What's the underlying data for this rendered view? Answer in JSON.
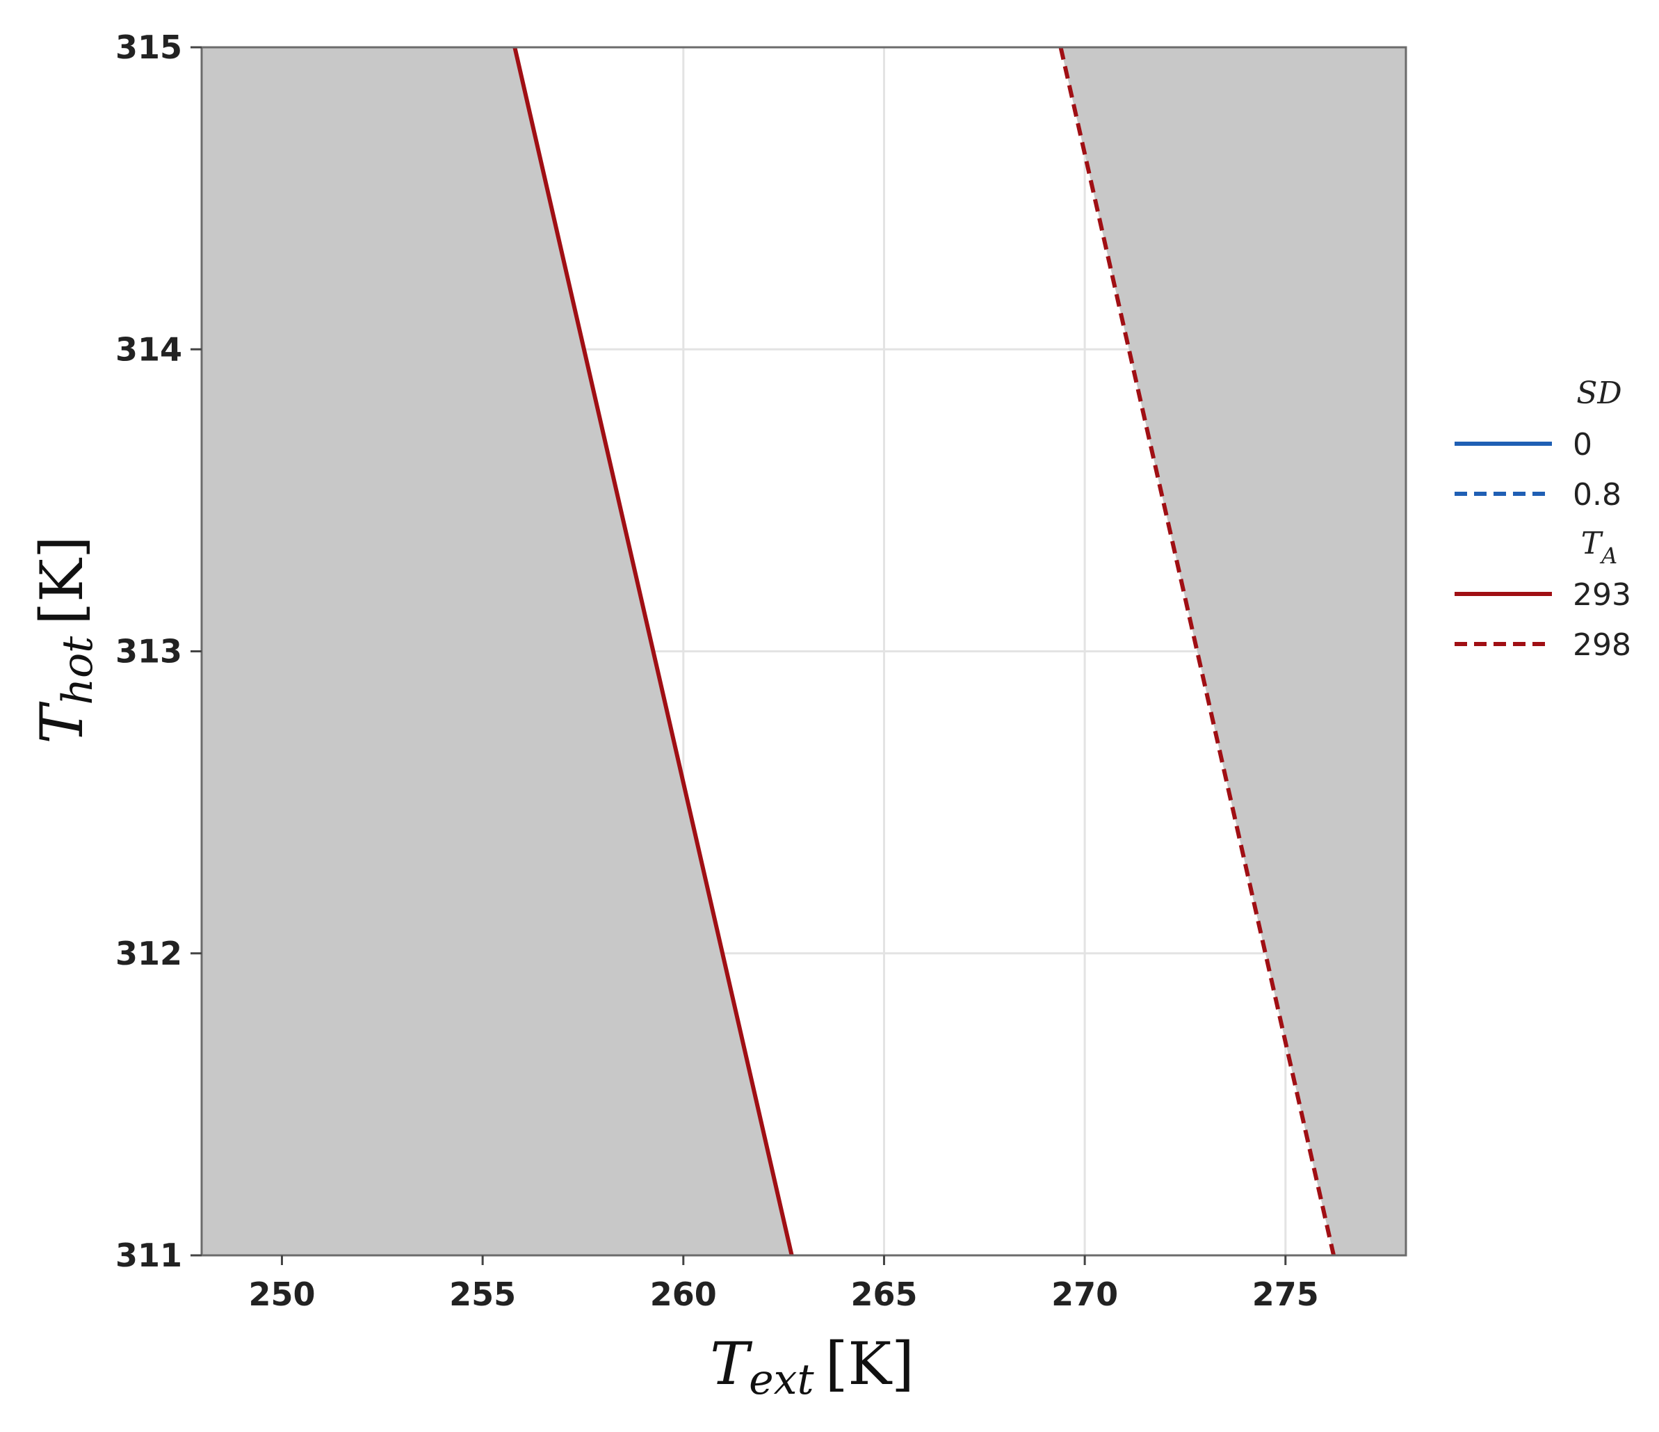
{
  "chart_data": {
    "type": "line",
    "xlabel": {
      "base": "T",
      "sub": "ext",
      "unit": "[K]"
    },
    "ylabel": {
      "base": "T",
      "sub": "hot",
      "unit": "[K]"
    },
    "xlim": [
      248,
      278
    ],
    "ylim": [
      311,
      315
    ],
    "x_ticks": [
      250,
      255,
      260,
      265,
      270,
      275
    ],
    "y_ticks": [
      311,
      312,
      313,
      314,
      315
    ],
    "grid": true,
    "legend_position": "right",
    "legend": [
      {
        "title": "SD",
        "entries": [
          {
            "label": "0",
            "color": "#1f5fb4",
            "dash": "solid"
          },
          {
            "label": "0.8",
            "color": "#1f5fb4",
            "dash": "dashed"
          }
        ]
      },
      {
        "title": "T",
        "title_sub": "A",
        "entries": [
          {
            "label": "293",
            "color": "#a00f14",
            "dash": "solid"
          },
          {
            "label": "298",
            "color": "#a00f14",
            "dash": "dashed"
          }
        ]
      }
    ],
    "series": [
      {
        "sd": "0.8",
        "ta": "293",
        "color": "#a00f14",
        "dash": "solid",
        "x": [
          255.8,
          262.7
        ],
        "y": [
          315,
          311
        ]
      },
      {
        "sd": "0.8",
        "ta": "298",
        "color": "#a00f14",
        "dash": "dashed",
        "x": [
          269.4,
          276.2
        ],
        "y": [
          315,
          311
        ]
      }
    ],
    "shaded_regions": [
      {
        "color": "#c8c8c8",
        "polygon": [
          [
            248,
            311
          ],
          [
            248,
            315
          ],
          [
            255.8,
            315
          ],
          [
            262.7,
            311
          ]
        ]
      },
      {
        "color": "#c8c8c8",
        "polygon": [
          [
            269.4,
            315
          ],
          [
            278,
            315
          ],
          [
            278,
            311
          ],
          [
            276.2,
            311
          ]
        ]
      }
    ]
  }
}
